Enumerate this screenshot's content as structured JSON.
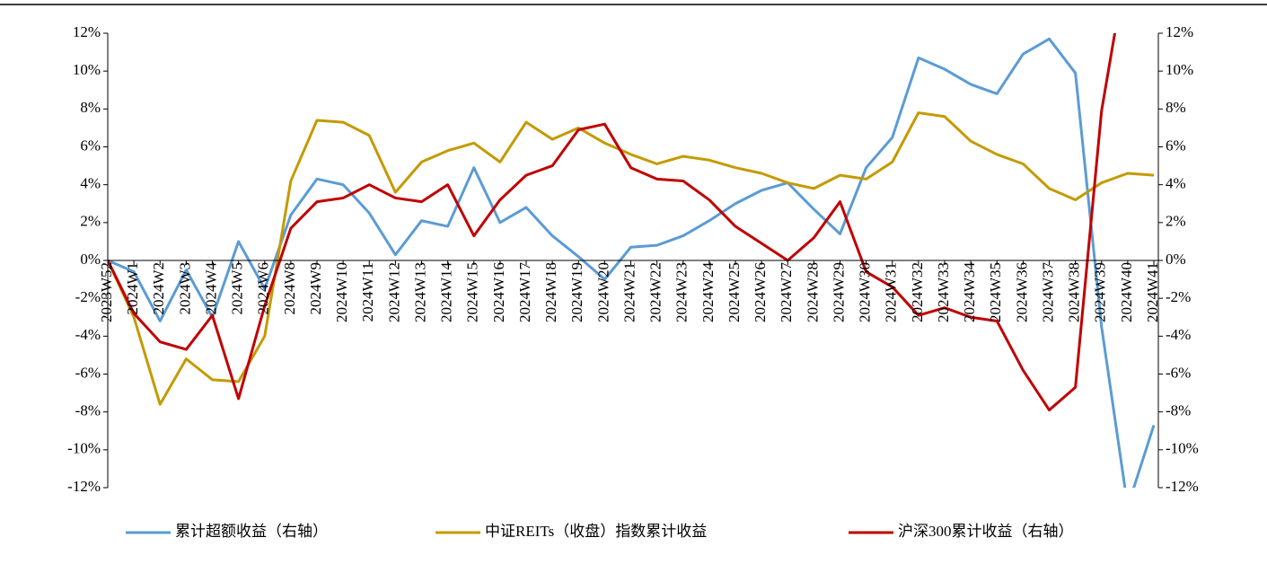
{
  "chart_data": {
    "type": "line",
    "categories": [
      "2023W52",
      "2024W1",
      "2024W2",
      "2024W3",
      "2024W4",
      "2024W5",
      "2024W6",
      "2024W8",
      "2024W9",
      "2024W10",
      "2024W11",
      "2024W12",
      "2024W13",
      "2024W14",
      "2024W15",
      "2024W16",
      "2024W17",
      "2024W18",
      "2024W19",
      "2024W20",
      "2024W21",
      "2024W22",
      "2024W23",
      "2024W24",
      "2024W25",
      "2024W26",
      "2024W27",
      "2024W28",
      "2024W29",
      "2024W30",
      "2024W31",
      "2024W32",
      "2024W33",
      "2024W34",
      "2024W35",
      "2024W36",
      "2024W37",
      "2024W38",
      "2024W39",
      "2024W40",
      "2024W41"
    ],
    "series": [
      {
        "name": "累计超额收益（右轴）",
        "color": "#5b9bd5",
        "axis": "y2",
        "values": [
          0,
          -0.6,
          -3.2,
          -0.5,
          -3.0,
          1.0,
          -1.5,
          2.4,
          4.3,
          4.0,
          2.5,
          0.3,
          2.1,
          1.8,
          4.9,
          2.0,
          2.8,
          1.3,
          0.2,
          -1.0,
          0.7,
          0.8,
          1.3,
          2.1,
          3.0,
          3.7,
          4.1,
          2.7,
          1.4,
          4.9,
          6.5,
          10.7,
          10.1,
          9.3,
          8.8,
          10.9,
          11.7,
          9.9,
          -3.5,
          -13,
          -8.7
        ]
      },
      {
        "name": "中证REITs（收盘）指数累计收益",
        "color": "#c49a00",
        "values": [
          0,
          -3.0,
          -7.6,
          -5.2,
          -6.3,
          -6.4,
          -4.0,
          4.2,
          7.4,
          7.3,
          6.6,
          3.6,
          5.2,
          5.8,
          6.2,
          5.2,
          7.3,
          6.4,
          7.0,
          6.2,
          5.6,
          5.1,
          5.5,
          5.3,
          4.9,
          4.6,
          4.1,
          3.8,
          4.5,
          4.3,
          5.2,
          7.8,
          7.6,
          6.3,
          5.6,
          5.1,
          3.8,
          3.2,
          4.1,
          4.6,
          4.5
        ]
      },
      {
        "name": "沪深300累计收益（右轴）",
        "color": "#c00000",
        "axis": "y2",
        "values": [
          0,
          -2.8,
          -4.3,
          -4.7,
          -2.9,
          -7.3,
          -2.4,
          1.7,
          3.1,
          3.3,
          4.0,
          3.3,
          3.1,
          4.0,
          1.3,
          3.2,
          4.5,
          5.0,
          6.9,
          7.2,
          4.9,
          4.3,
          4.2,
          3.2,
          1.8,
          0.9,
          0.0,
          1.2,
          3.1,
          -0.6,
          -1.4,
          -2.9,
          -2.5,
          -3.0,
          -3.2,
          -5.8,
          -7.9,
          -6.7,
          7.9,
          16,
          null
        ]
      }
    ],
    "ylim": [
      -12,
      12
    ],
    "yticks": [
      {
        "value": -12,
        "label": "-12%"
      },
      {
        "value": -10,
        "label": "-10%"
      },
      {
        "value": -8,
        "label": "-8%"
      },
      {
        "value": -6,
        "label": "-6%"
      },
      {
        "value": -4,
        "label": "-4%"
      },
      {
        "value": -2,
        "label": "-2%"
      },
      {
        "value": 0,
        "label": "0%"
      },
      {
        "value": 2,
        "label": "2%"
      },
      {
        "value": 4,
        "label": "4%"
      },
      {
        "value": 6,
        "label": "6%"
      },
      {
        "value": 8,
        "label": "8%"
      },
      {
        "value": 10,
        "label": "10%"
      },
      {
        "value": 12,
        "label": "12%"
      }
    ],
    "y2lim": [
      -12,
      12
    ],
    "y2ticks": [
      {
        "value": -12,
        "label": "-12%"
      },
      {
        "value": -10,
        "label": "-10%"
      },
      {
        "value": -8,
        "label": "-8%"
      },
      {
        "value": -6,
        "label": "-6%"
      },
      {
        "value": -4,
        "label": "-4%"
      },
      {
        "value": -2,
        "label": "-2%"
      },
      {
        "value": 0,
        "label": "0%"
      },
      {
        "value": 2,
        "label": "2%"
      },
      {
        "value": 4,
        "label": "4%"
      },
      {
        "value": 6,
        "label": "6%"
      },
      {
        "value": 8,
        "label": "8%"
      },
      {
        "value": 10,
        "label": "10%"
      },
      {
        "value": 12,
        "label": "12%"
      }
    ],
    "legend": "bottom"
  }
}
